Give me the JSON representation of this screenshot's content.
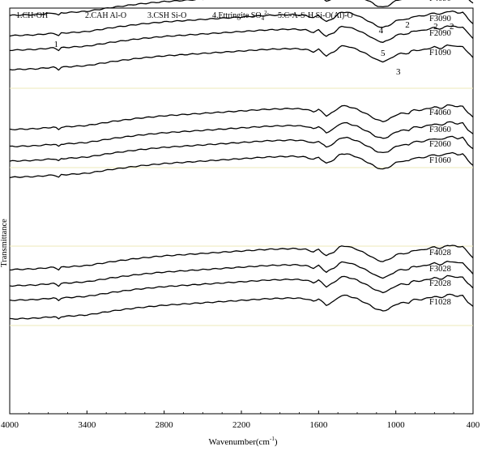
{
  "chart_data": {
    "type": "line",
    "title": "",
    "xlabel": "Wavenumber(cm-1)",
    "ylabel": "Transmittance",
    "xlim": [
      4000,
      400
    ],
    "x_reversed": true,
    "x_ticks": [
      4000,
      3400,
      2800,
      2200,
      1600,
      1000,
      400
    ],
    "annotation_legend": [
      "1.CH-OH",
      "2.CAH Al-O",
      "3.CSH Si-O",
      "4.Ettringite SO42-",
      "5.C-A-S-H Si-O(Al)-O"
    ],
    "peak_markers": [
      {
        "label": "1",
        "x": 3640
      },
      {
        "label": "2",
        "x": 910
      },
      {
        "label": "2",
        "x": 690
      },
      {
        "label": "2",
        "x": 565
      },
      {
        "label": "3",
        "x": 980
      },
      {
        "label": "4",
        "x": 1115
      },
      {
        "label": "5",
        "x": 1100
      }
    ],
    "series": [
      {
        "name": "F4090",
        "offset": 492
      },
      {
        "name": "F3090",
        "offset": 467
      },
      {
        "name": "F2090",
        "offset": 449
      },
      {
        "name": "F1090",
        "offset": 425
      },
      {
        "name": "F4060",
        "offset": 351
      },
      {
        "name": "F3060",
        "offset": 330
      },
      {
        "name": "F2060",
        "offset": 312
      },
      {
        "name": "F1060",
        "offset": 292
      },
      {
        "name": "F4028",
        "offset": 178
      },
      {
        "name": "F3028",
        "offset": 158
      },
      {
        "name": "F2028",
        "offset": 140
      },
      {
        "name": "F1028",
        "offset": 117
      }
    ],
    "shape": {
      "x": [
        4000,
        3800,
        3650,
        3620,
        3600,
        3400,
        3200,
        3000,
        2800,
        2400,
        2000,
        1800,
        1700,
        1640,
        1600,
        1540,
        1480,
        1430,
        1380,
        1300,
        1200,
        1150,
        1100,
        1060,
        1000,
        960,
        900,
        870,
        800,
        700,
        650,
        600,
        560,
        520,
        480,
        440,
        400
      ],
      "y": [
        0,
        1,
        3,
        0,
        3,
        5,
        10,
        14,
        17,
        21,
        25,
        26,
        25,
        22,
        25,
        17,
        22,
        29,
        29,
        25,
        17,
        12,
        10,
        12,
        18,
        20,
        20,
        24,
        24,
        28,
        26,
        30,
        30,
        28,
        29,
        21,
        15
      ]
    }
  }
}
